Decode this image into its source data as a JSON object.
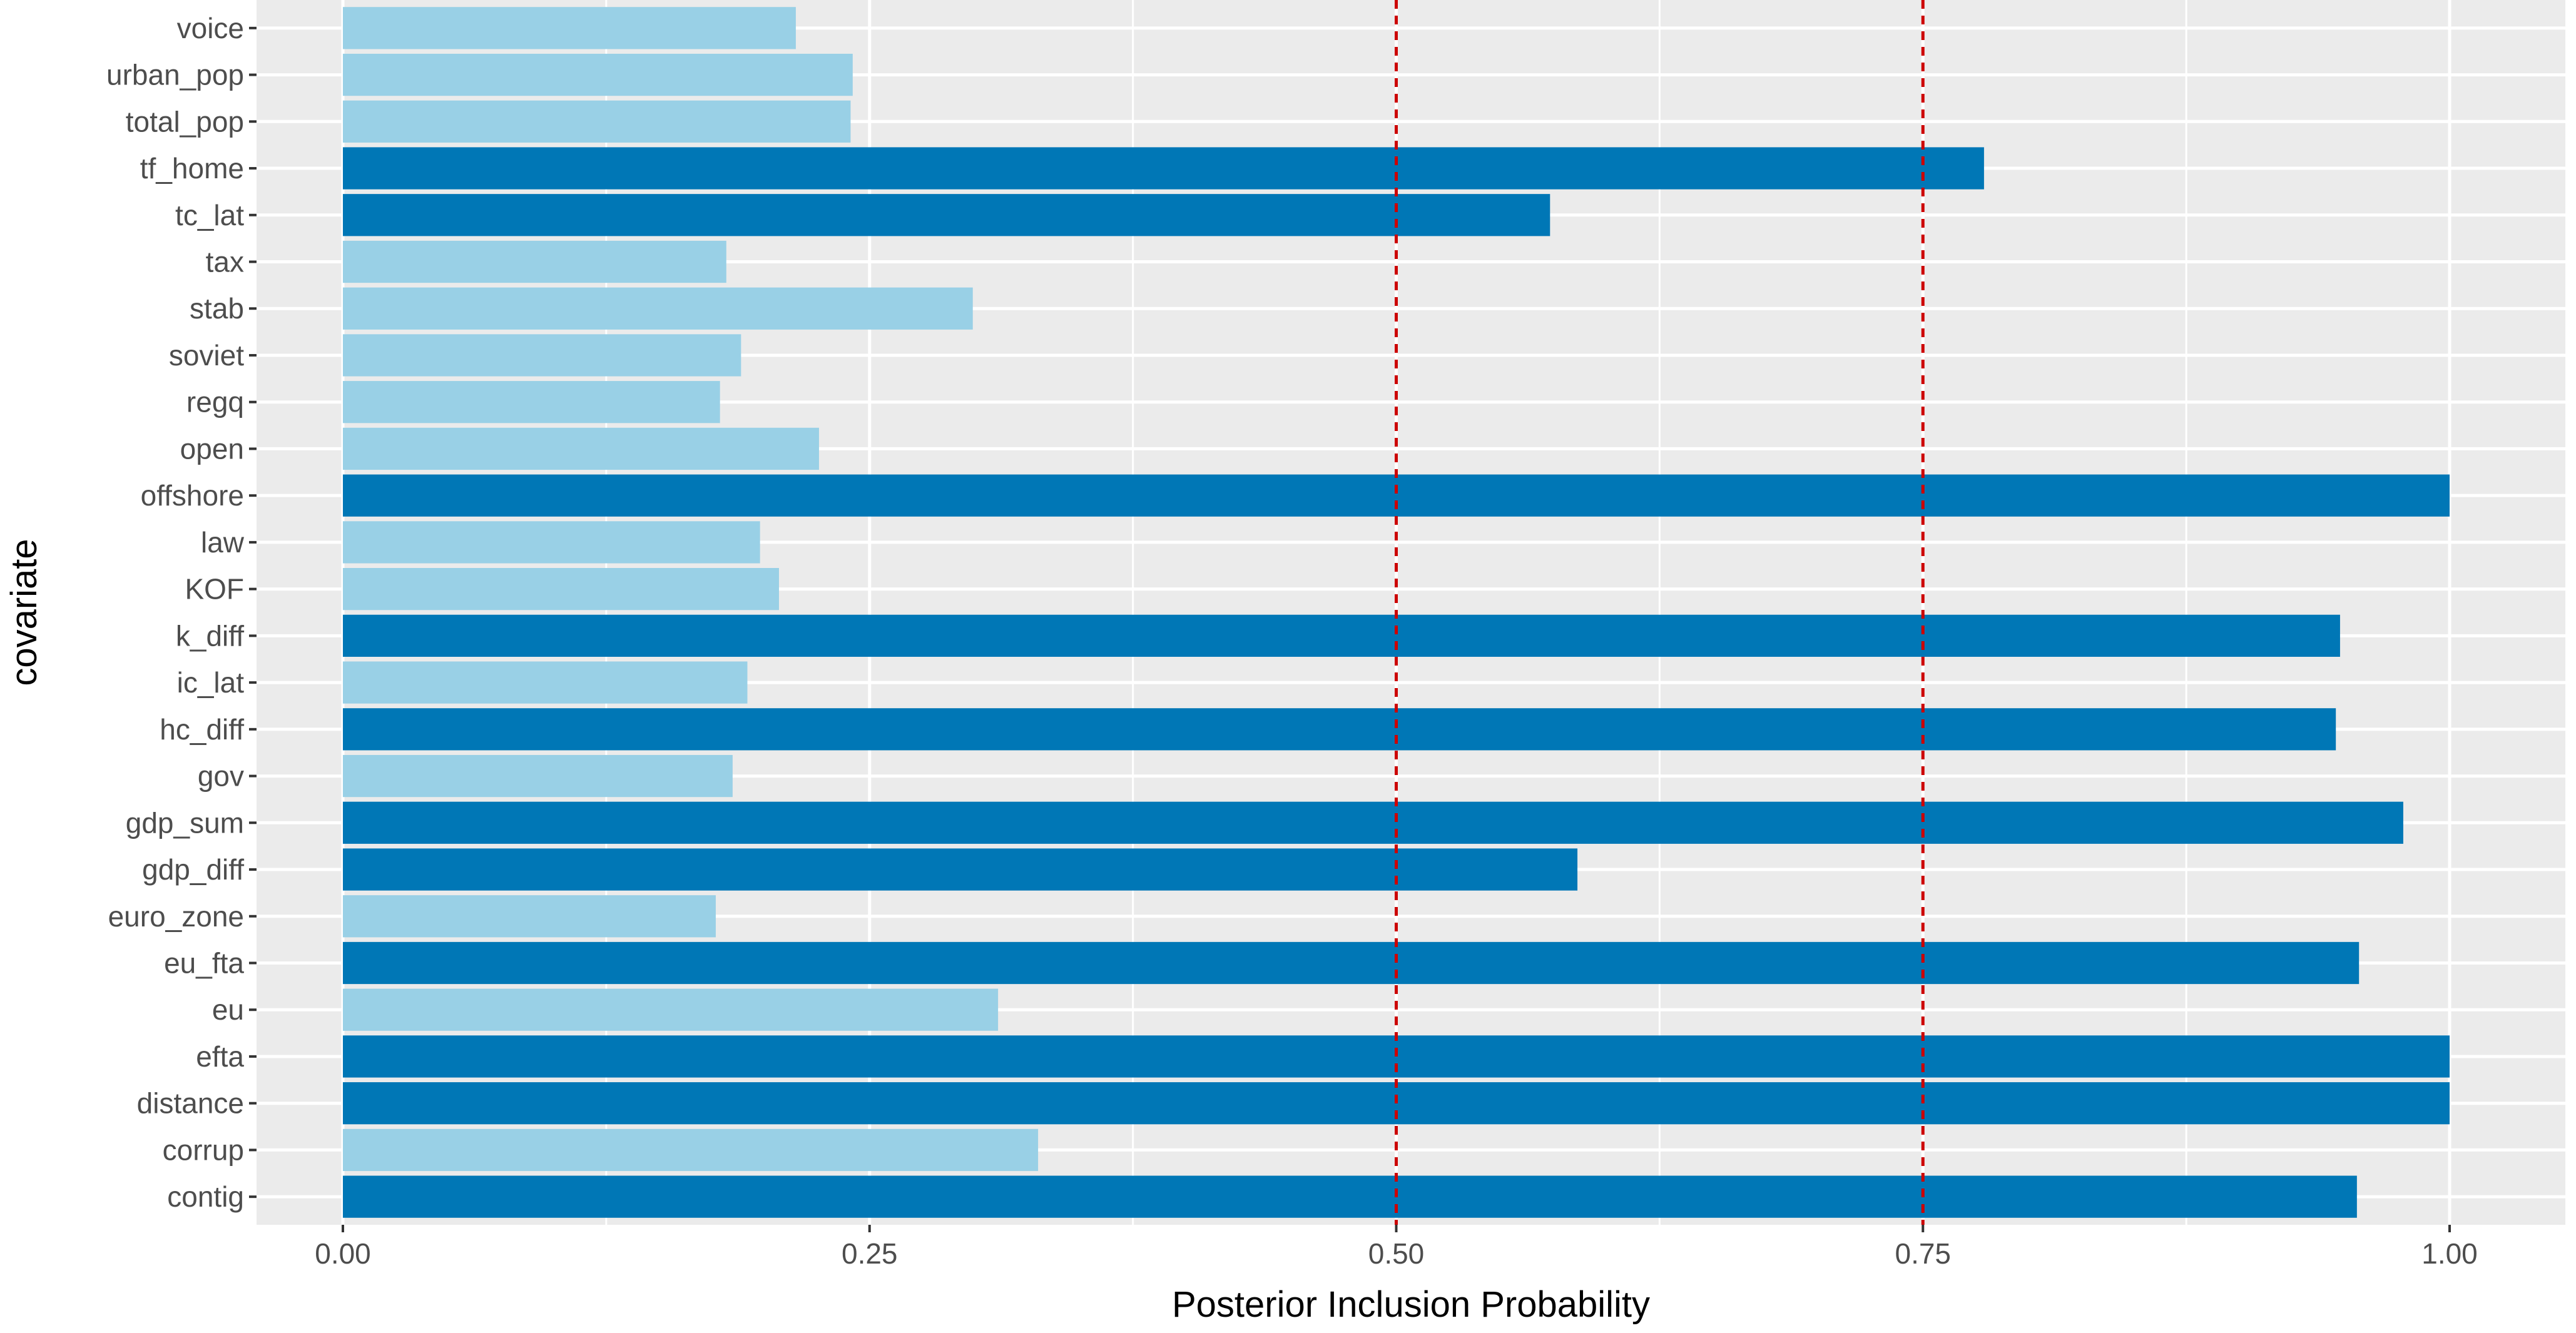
{
  "chart_data": {
    "type": "bar",
    "orientation": "horizontal",
    "xlabel": "Posterior Inclusion Probability",
    "ylabel": "covariate",
    "xlim": [
      -0.05,
      1.05
    ],
    "xticks": [
      0.0,
      0.25,
      0.5,
      0.75,
      1.0
    ],
    "xtick_labels": [
      "0.00",
      "0.25",
      "0.50",
      "0.75",
      "1.00"
    ],
    "reference_lines": [
      0.5,
      0.75
    ],
    "grid": true,
    "categories": [
      "contig",
      "corrup",
      "distance",
      "efta",
      "eu",
      "eu_fta",
      "euro_zone",
      "gdp_diff",
      "gdp_sum",
      "gov",
      "hc_diff",
      "ic_lat",
      "k_diff",
      "KOF",
      "law",
      "offshore",
      "open",
      "regq",
      "soviet",
      "stab",
      "tax",
      "tc_lat",
      "tf_home",
      "total_pop",
      "urban_pop",
      "voice"
    ],
    "values": [
      0.956,
      0.33,
      1.0,
      1.0,
      0.311,
      0.957,
      0.177,
      0.586,
      0.978,
      0.185,
      0.946,
      0.192,
      0.948,
      0.207,
      0.198,
      1.0,
      0.226,
      0.179,
      0.189,
      0.299,
      0.182,
      0.573,
      0.779,
      0.241,
      0.242,
      0.215
    ],
    "colors": {
      "above_threshold": "#0077B6",
      "below_threshold": "#99D0E6",
      "reference_line": "#CC0000",
      "panel": "#EBEBEB",
      "grid": "#FFFFFF"
    },
    "threshold": 0.5
  }
}
